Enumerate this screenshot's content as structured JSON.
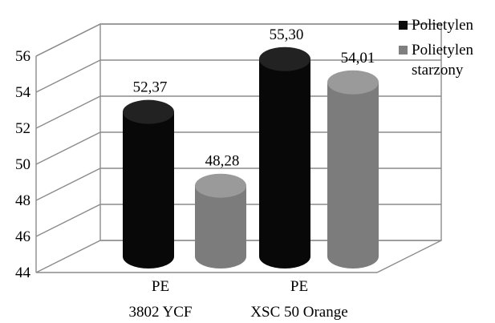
{
  "chart_data": {
    "type": "bar",
    "style": "3d-cylinder",
    "categories": [
      {
        "line1": "PE",
        "line2": "3802 YCF"
      },
      {
        "line1": "PE",
        "line2": "XSC 50 Orange"
      }
    ],
    "series": [
      {
        "name": "Polietylen",
        "legend_lines": [
          "Polietylen"
        ],
        "color": "#0a0a0a",
        "values": [
          52.37,
          55.3
        ],
        "labels": [
          "52,37",
          "55,30"
        ]
      },
      {
        "name": "Polietylen starzony",
        "legend_lines": [
          "Polietylen",
          "starzony"
        ],
        "color": "#7f7f7f",
        "values": [
          48.28,
          54.01
        ],
        "labels": [
          "48,28",
          "54,01"
        ]
      }
    ],
    "ylim": [
      44,
      56
    ],
    "yticks": [
      "44",
      "46",
      "48",
      "50",
      "52",
      "54",
      "56"
    ],
    "grid": true,
    "legend": "right"
  }
}
